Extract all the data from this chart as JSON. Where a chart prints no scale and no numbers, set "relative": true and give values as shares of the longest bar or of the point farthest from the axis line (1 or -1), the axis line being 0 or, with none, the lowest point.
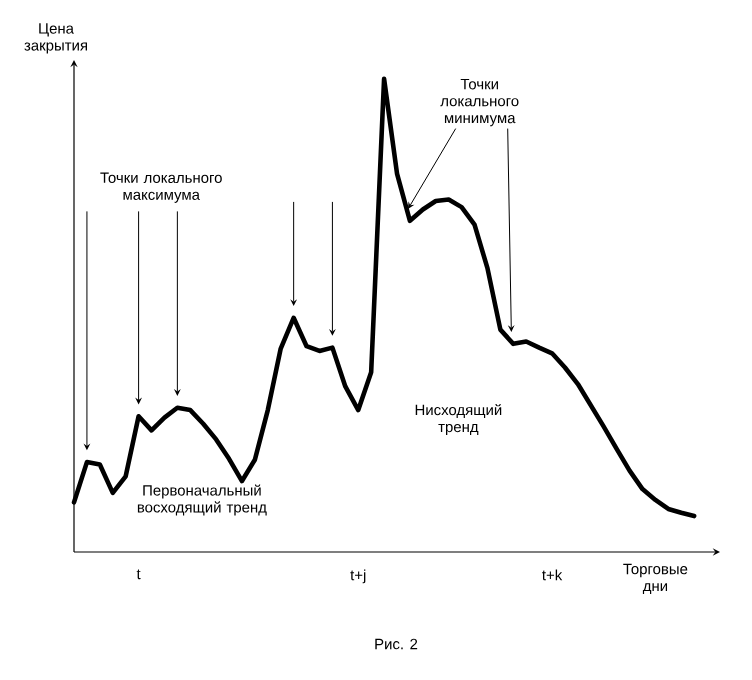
{
  "chart_data": {
    "type": "line",
    "relative": true,
    "xlabel": "Торговые дни",
    "ylabel": "Цена закрытия",
    "categories": [
      null,
      null,
      null,
      null,
      null,
      "t",
      null,
      null,
      null,
      null,
      null,
      null,
      null,
      null,
      null,
      null,
      null,
      null,
      null,
      null,
      null,
      null,
      "t+j",
      null,
      null,
      null,
      null,
      null,
      null,
      null,
      null,
      null,
      null,
      null,
      null,
      null,
      null,
      "t+k",
      null,
      null,
      null,
      null,
      null,
      null,
      null,
      null,
      null,
      null,
      null
    ],
    "series": [
      {
        "color": "#000000",
        "values": [
          0.105,
          0.19,
          0.185,
          0.125,
          0.16,
          0.287,
          0.257,
          0.284,
          0.305,
          0.3,
          0.271,
          0.238,
          0.197,
          0.15,
          0.195,
          0.3,
          0.43,
          0.495,
          0.435,
          0.425,
          0.432,
          0.35,
          0.3,
          0.38,
          1.0,
          0.8,
          0.7,
          0.724,
          0.742,
          0.745,
          0.729,
          0.692,
          0.6,
          0.47,
          0.44,
          0.445,
          0.432,
          0.42,
          0.39,
          0.355,
          0.31,
          0.265,
          0.218,
          0.172,
          0.133,
          0.11,
          0.091,
          0.083,
          0.076
        ]
      }
    ],
    "annotations": [
      "Точки локального максимума",
      "Точки локального минимума",
      "Первоначальный восходящий тренд",
      "Нисходящий тренд",
      "Рис. 2"
    ]
  }
}
